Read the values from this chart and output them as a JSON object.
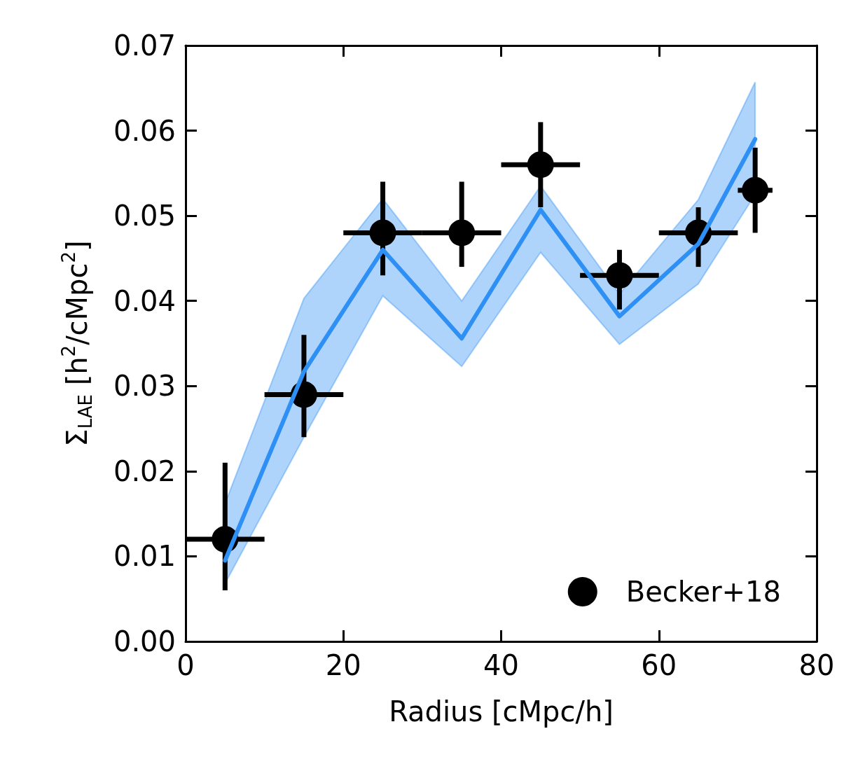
{
  "chart_data": {
    "type": "scatter",
    "xlabel": "Radius [cMpc/h]",
    "ylabel": "Σ$_{LAE}$ [h$^{2}$/cMpc$^{2}$]",
    "xlim": [
      0,
      80
    ],
    "xticks": [
      0,
      20,
      40,
      60,
      80
    ],
    "ylim": [
      0,
      0.07
    ],
    "yticks": [
      {
        "value": 0,
        "label": "0.00"
      },
      {
        "value": 0.01,
        "label": "0.01"
      },
      {
        "value": 0.02,
        "label": "0.02"
      },
      {
        "value": 0.03,
        "label": "0.03"
      },
      {
        "value": 0.04,
        "label": "0.04"
      },
      {
        "value": 0.05,
        "label": "0.05"
      },
      {
        "value": 0.06,
        "label": "0.06"
      },
      {
        "value": 0.07,
        "label": "0.07"
      }
    ],
    "grid": false,
    "legend": "bottom right",
    "marker": "circle",
    "series": [
      {
        "type": "line",
        "color": "#2e8ff5",
        "x": [
          5,
          15,
          25,
          35,
          45,
          55,
          65,
          72.2
        ],
        "values": [
          0.0095,
          0.0317,
          0.046,
          0.0356,
          0.0507,
          0.0382,
          0.0467,
          0.059
        ],
        "lower": [
          0.0068,
          0.024,
          0.0406,
          0.0323,
          0.0457,
          0.0349,
          0.042,
          0.0525
        ],
        "upper": [
          0.0162,
          0.0403,
          0.052,
          0.04,
          0.0535,
          0.0408,
          0.0519,
          0.0657
        ],
        "marker": "none",
        "line_style": "solid"
      },
      {
        "name": "Becker+18",
        "color": "#000000",
        "x": [
          5,
          15,
          25,
          35,
          45,
          55,
          65,
          72.2
        ],
        "values": [
          0.012,
          0.029,
          0.048,
          0.048,
          0.056,
          0.043,
          0.048,
          0.053
        ],
        "errors": [
          [
            0.006,
            0.021
          ],
          [
            0.024,
            0.036
          ],
          [
            0.043,
            0.054
          ],
          [
            0.044,
            0.054
          ],
          [
            0.051,
            0.061
          ],
          [
            0.039,
            0.046
          ],
          [
            0.044,
            0.051
          ],
          [
            0.048,
            0.058
          ]
        ],
        "xerrors": [
          5,
          5,
          5,
          5,
          5,
          5,
          5,
          [
            70,
            74.4
          ]
        ]
      }
    ]
  }
}
